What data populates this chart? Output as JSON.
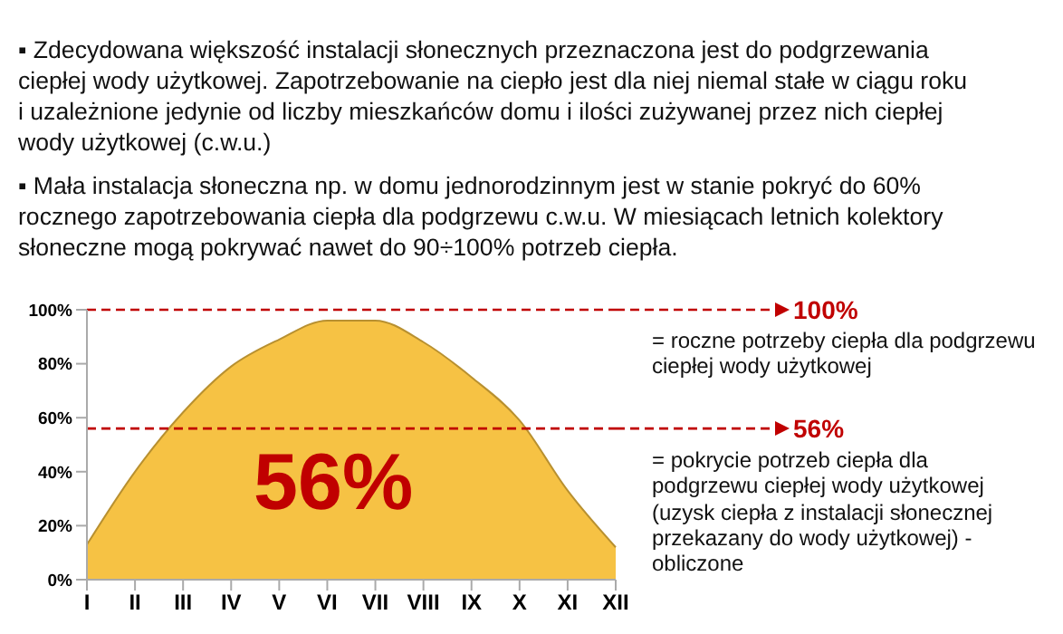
{
  "chart_data": {
    "type": "area",
    "categories": [
      "I",
      "II",
      "III",
      "IV",
      "V",
      "VI",
      "VII",
      "VIII",
      "IX",
      "X",
      "XI",
      "XII"
    ],
    "series": [
      {
        "color": "#f6c244",
        "values": [
          13,
          40,
          62,
          79,
          89,
          96,
          96,
          88,
          75,
          59,
          33,
          12
        ]
      }
    ],
    "ylim": [
      0,
      100
    ],
    "yticks": [
      {
        "value": 0,
        "label": "0%"
      },
      {
        "value": 20,
        "label": "20%"
      },
      {
        "value": 40,
        "label": "40%"
      },
      {
        "value": 60,
        "label": "60%"
      },
      {
        "value": 80,
        "label": "80%"
      },
      {
        "value": 100,
        "label": "100%"
      }
    ],
    "grid": false,
    "ref_lines": [
      {
        "axis": "y",
        "value": 100,
        "label": "100%",
        "color": "#c00000",
        "line_style": "dashed"
      },
      {
        "axis": "y",
        "value": 56,
        "label": "56%",
        "color": "#c00000",
        "line_style": "dashed"
      }
    ],
    "annotations": [
      "▪ Zdecydowana większość instalacji słonecznych przeznaczona jest do podgrzewania ciepłej wody użytkowej. Zapotrzebowanie na ciepło jest dla niej niemal stałe w ciągu roku i uzależnione jedynie od liczby mieszkańców domu i ilości zużywanej przez nich ciepłej wody użytkowej (c.w.u.)",
      "▪ Mała instalacja słoneczna np. w domu jednorodzinnym jest w stanie pokryć do 60% rocznego zapotrzebowania ciepła dla podgrzewu c.w.u. W miesiącach letnich kolektory słoneczne mogą pokrywać nawet do 90÷100% potrzeb ciepła.",
      "= roczne potrzeby ciepła dla podgrzewu ciepłej wody użytkowej",
      "= pokrycie potrzeb ciepła dla podgrzewu ciepłej wody użytkowej (uzysk ciepła z instalacji słonecznej przekazany do wody użytkowej) - obliczone",
      "56%"
    ]
  }
}
